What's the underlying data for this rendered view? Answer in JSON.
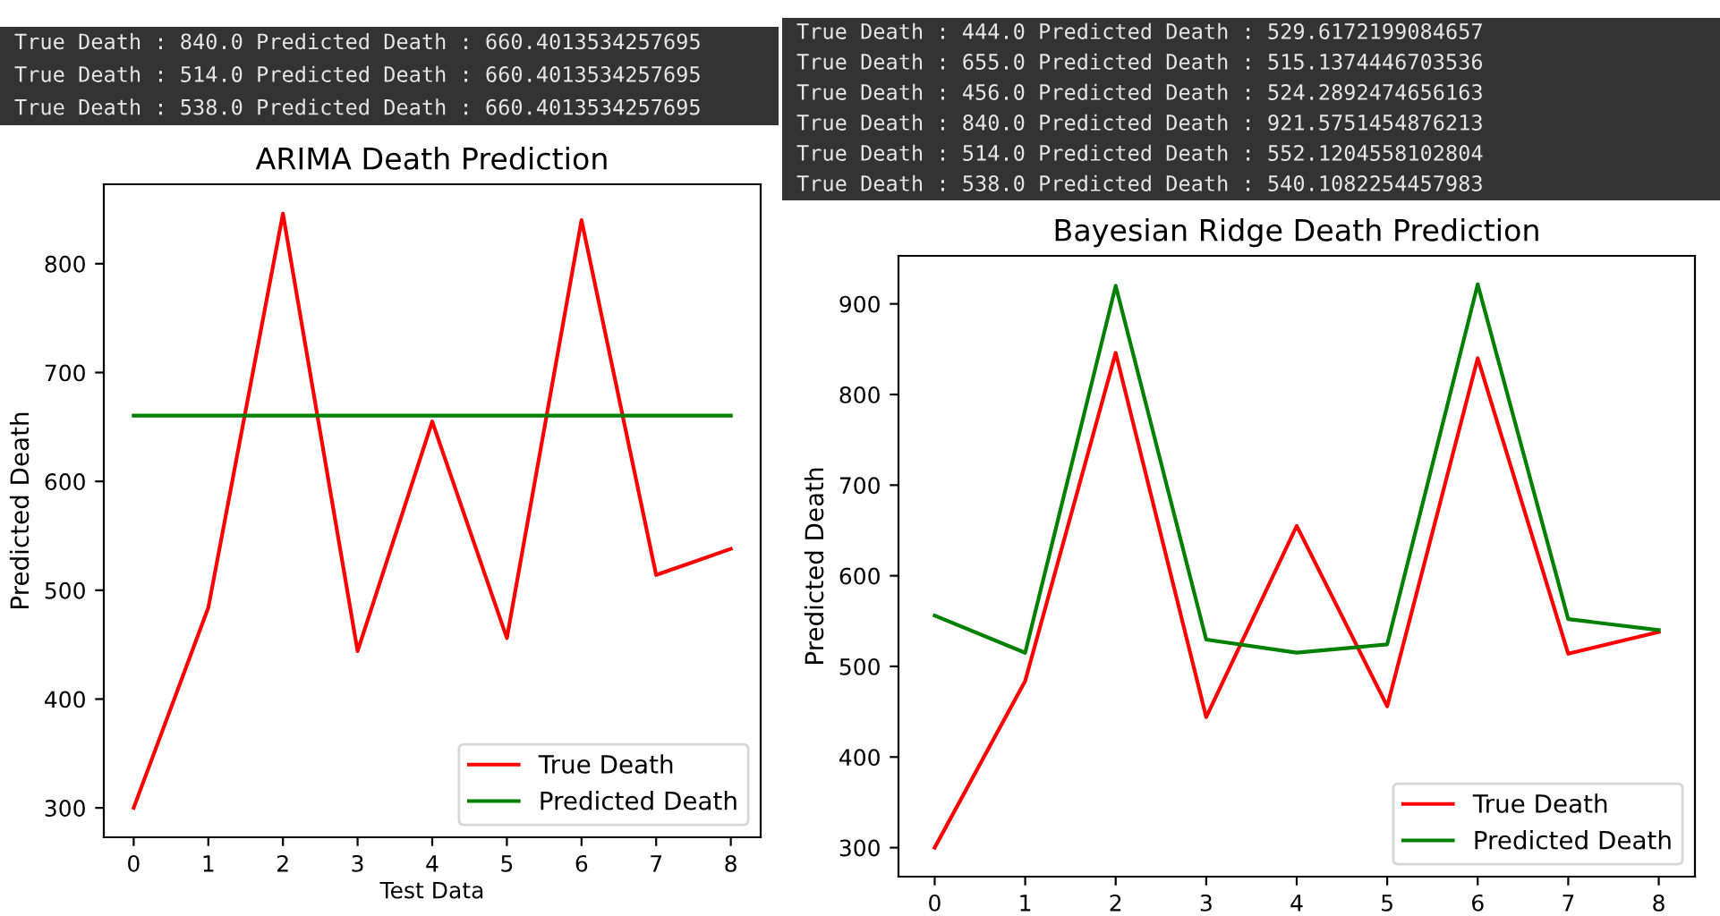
{
  "chart_data": [
    {
      "type": "line",
      "title": "ARIMA Death Prediction",
      "xlabel": "Test Data",
      "ylabel": "Predicted Death",
      "categories": [
        "0",
        "1",
        "2",
        "3",
        "4",
        "5",
        "6",
        "7",
        "8"
      ],
      "series": [
        {
          "name": "True Death",
          "color": "#ff0000",
          "values": [
            300,
            484,
            846,
            444,
            655,
            456,
            840,
            514,
            538
          ]
        },
        {
          "name": "Predicted Death",
          "color": "#008000",
          "values": [
            660.4013534257695,
            660.4013534257695,
            660.4013534257695,
            660.4013534257695,
            660.4013534257695,
            660.4013534257695,
            660.4013534257695,
            660.4013534257695,
            660.4013534257695
          ]
        }
      ],
      "ylim": [
        273,
        873
      ],
      "yticks": [
        300,
        400,
        500,
        600,
        700,
        800
      ],
      "grid": false,
      "legend": "bottom right",
      "marker": "none",
      "line_style": "solid",
      "annotations": [
        "True Death : 840.0 Predicted Death : 660.4013534257695",
        "True Death : 514.0 Predicted Death : 660.4013534257695",
        "True Death : 538.0 Predicted Death : 660.4013534257695"
      ]
    },
    {
      "type": "line",
      "title": "Bayesian Ridge Death Prediction",
      "ylabel": "Predicted Death",
      "categories": [
        "0",
        "1",
        "2",
        "3",
        "4",
        "5",
        "6",
        "7",
        "8"
      ],
      "series": [
        {
          "name": "True Death",
          "color": "#ff0000",
          "values": [
            300,
            484,
            846,
            444,
            655,
            456,
            840,
            514,
            538
          ]
        },
        {
          "name": "Predicted Death",
          "color": "#008000",
          "values": [
            556,
            515,
            920,
            529.6172199084657,
            515.1374446703536,
            524.2892474656163,
            921.5751454876213,
            552.1204558102804,
            540.1082254457983
          ]
        }
      ],
      "ylim": [
        268,
        953
      ],
      "yticks": [
        300,
        400,
        500,
        600,
        700,
        800,
        900
      ],
      "grid": false,
      "legend": "bottom right",
      "marker": "none",
      "line_style": "solid",
      "annotations": [
        "True Death : 444.0 Predicted Death : 529.6172199084657",
        "True Death : 655.0 Predicted Death : 515.1374446703536",
        "True Death : 456.0 Predicted Death : 524.2892474656163",
        "True Death : 840.0 Predicted Death : 921.5751454876213",
        "True Death : 514.0 Predicted Death : 552.1204558102804",
        "True Death : 538.0 Predicted Death : 540.1082254457983"
      ]
    }
  ]
}
